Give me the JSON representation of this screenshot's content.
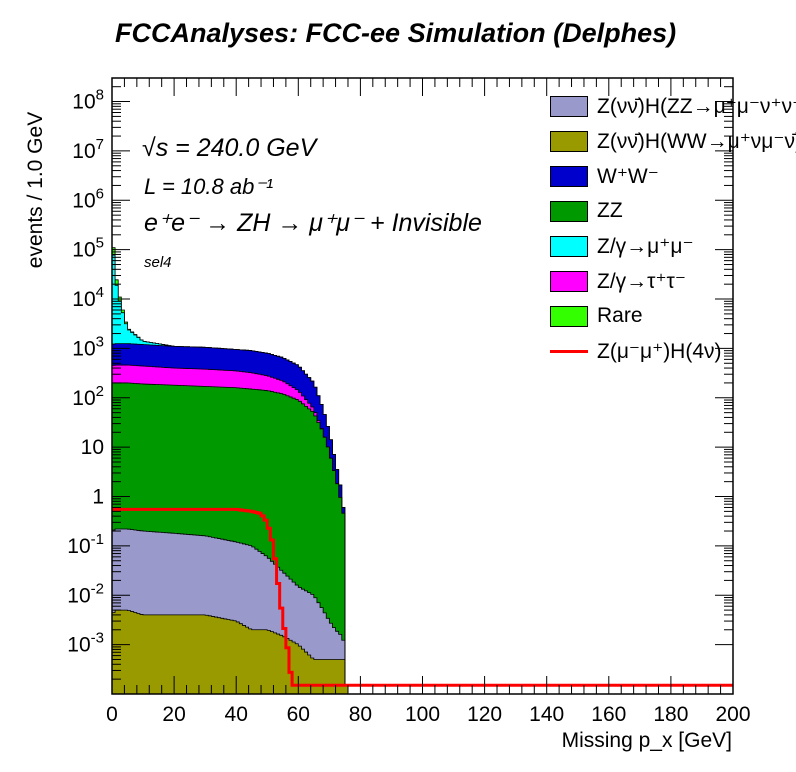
{
  "title": "FCCAnalyses: FCC-ee Simulation (Delphes)",
  "annotations": {
    "energy": "√s = 240.0 GeV",
    "lumi": "L = 10.8 ab⁻¹",
    "process": "e⁺e⁻ → ZH → μ⁺μ⁻ + Invisible",
    "selection": "sel4"
  },
  "chart_data": {
    "type": "histogram-stacked",
    "xlabel": "Missing p_x [GeV]",
    "ylabel": "events / 1.0 GeV",
    "xlim": [
      0,
      200
    ],
    "ylim": [
      0.00015,
      300000000
    ],
    "yscale": "log",
    "x_ticks": [
      "0",
      "20",
      "40",
      "60",
      "80",
      "100",
      "120",
      "140",
      "160",
      "180",
      "200"
    ],
    "y_ticks": [
      "10^-3",
      "10^-2",
      "10^-1",
      "1",
      "10",
      "10^2",
      "10^3",
      "10^4",
      "10^5",
      "10^6",
      "10^7",
      "10^8"
    ],
    "legend_position": "top-right",
    "stack_cumulative_points": {
      "x": [
        0,
        1,
        2,
        3,
        4,
        5,
        10,
        20,
        30,
        40,
        45,
        50,
        55,
        60,
        65,
        68,
        70,
        72,
        74,
        75,
        75.01,
        200
      ],
      "sig_zz": [
        0.2,
        0.22,
        0.22,
        0.22,
        0.22,
        0.22,
        0.2,
        0.18,
        0.16,
        0.12,
        0.1,
        0.06,
        0.03,
        0.015,
        0.01,
        0.005,
        0.003,
        0.002,
        0.0015,
        0.001,
        0.00015,
        0.00015
      ],
      "sig_ww": [
        0.004,
        0.005,
        0.005,
        0.005,
        0.005,
        0.005,
        0.004,
        0.004,
        0.004,
        0.003,
        0.002,
        0.002,
        0.0015,
        0.001,
        0.0005,
        0.0005,
        0.0005,
        0.0005,
        0.0005,
        0.0005,
        0.00015,
        0.00015
      ],
      "ww": [
        1200,
        1250,
        1250,
        1250,
        1250,
        1250,
        1200,
        1100,
        1050,
        950,
        900,
        800,
        650,
        450,
        200,
        60,
        20,
        5,
        1.2,
        0.3,
        0.00015,
        0.00015
      ],
      "zz": [
        200,
        200,
        200,
        200,
        200,
        200,
        190,
        180,
        170,
        160,
        150,
        140,
        120,
        90,
        50,
        20,
        8,
        2.5,
        0.7,
        0.3,
        0.00015,
        0.00015
      ],
      "zmm": [
        200000,
        30000,
        12000,
        7000,
        4000,
        2500,
        1400,
        1100,
        1050,
        950,
        900,
        800,
        650,
        450,
        200,
        60,
        20,
        5,
        1.2,
        0.3,
        0.00015,
        0.00015
      ],
      "ztt": [
        450,
        460,
        460,
        460,
        460,
        460,
        440,
        400,
        380,
        350,
        320,
        280,
        220,
        140,
        60,
        20,
        8,
        2.5,
        0.7,
        0.3,
        0.00015,
        0.00015
      ],
      "rare": [
        300000,
        40000,
        15000,
        8000,
        4500,
        2600,
        1400,
        1100,
        1050,
        950,
        900,
        800,
        650,
        450,
        200,
        60,
        20,
        5,
        1.2,
        0.3,
        0.00015,
        0.00015
      ]
    },
    "signal_line": {
      "name": "Z(μ⁻μ⁺)H(4ν)",
      "x": [
        0,
        10,
        20,
        30,
        40,
        45,
        48,
        50,
        52,
        53,
        54,
        55,
        56,
        57,
        58,
        200
      ],
      "values": [
        0.55,
        0.55,
        0.55,
        0.55,
        0.55,
        0.5,
        0.45,
        0.3,
        0.1,
        0.03,
        0.01,
        0.003,
        0.0015,
        0.0005,
        0.00015,
        0.00015
      ]
    }
  },
  "legend": [
    {
      "label": "Z(νν̄)H(ZZ→μ⁺μ⁻ν⁺ν⁻)",
      "color": "#9999cc",
      "type": "fill"
    },
    {
      "label": "Z(νν̄)H(WW→μ⁺νμ⁻ν̄)",
      "color": "#999900",
      "type": "fill"
    },
    {
      "label": "W⁺W⁻",
      "color": "#0000cc",
      "type": "fill"
    },
    {
      "label": "ZZ",
      "color": "#009900",
      "type": "fill"
    },
    {
      "label": "Z/γ→μ⁺μ⁻",
      "color": "#00ffff",
      "type": "fill"
    },
    {
      "label": "Z/γ→τ⁺τ⁻",
      "color": "#ff00ff",
      "type": "fill"
    },
    {
      "label": "Rare",
      "color": "#33ff00",
      "type": "fill"
    },
    {
      "label": "Z(μ⁻μ⁺)H(4ν)",
      "color": "#ff0000",
      "type": "line"
    }
  ]
}
